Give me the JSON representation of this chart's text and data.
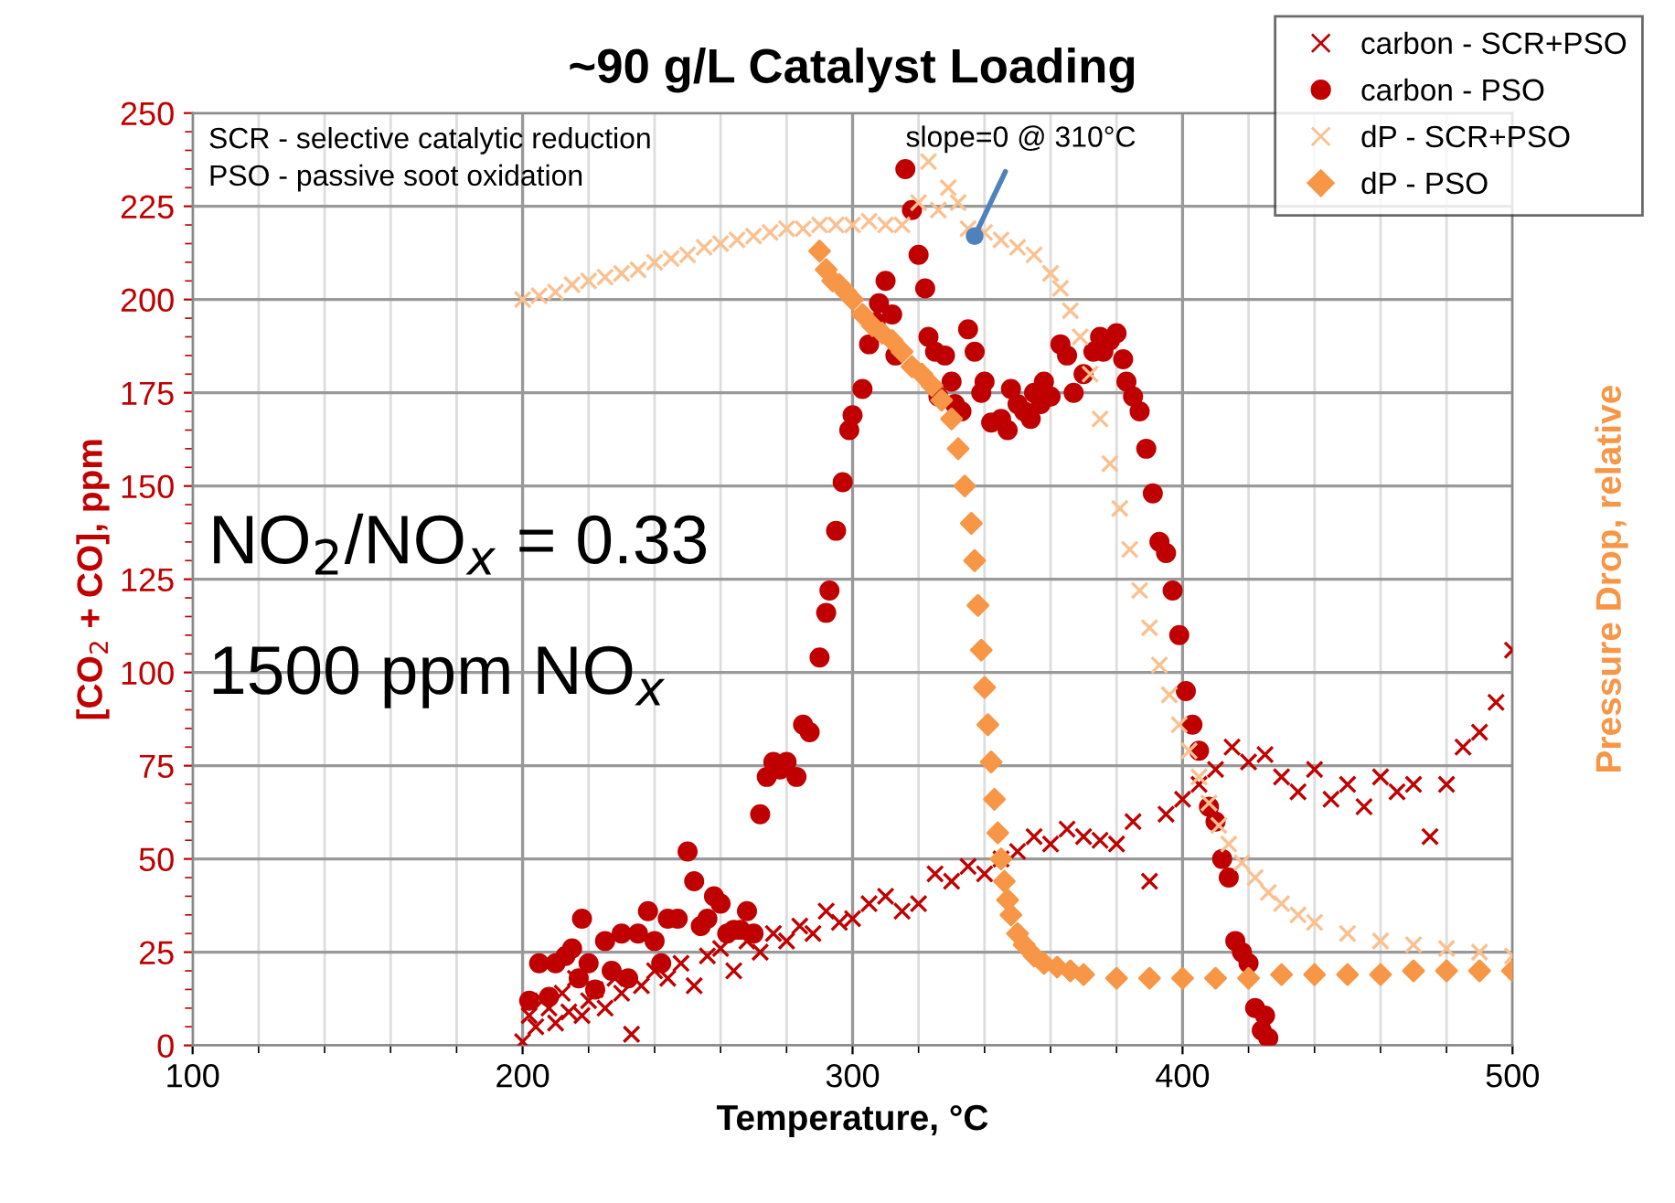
{
  "chart_data": {
    "type": "scatter",
    "title": "~90 g/L Catalyst Loading",
    "xlabel": "Temperature, °C",
    "ylabel": "[CO$_{2}$ + CO], ppm",
    "y2label": "Pressure Drop, relative",
    "xlim": [
      100,
      500
    ],
    "xticks": [
      100,
      200,
      300,
      400,
      500
    ],
    "ylim": [
      0,
      250
    ],
    "yticks": [
      0,
      25,
      50,
      75,
      100,
      125,
      150,
      175,
      200,
      225,
      250
    ],
    "grid": true,
    "legend": "top right",
    "annotations": [
      "SCR - selective catalytic reduction",
      "PSO - passive soot oxidation",
      "NO$_{2}$/NO$_{x}$ = 0.33",
      "1500 ppm NO$_{x}$",
      {
        "text": "slope=0 @ 310°C",
        "x": 337,
        "y": 217
      }
    ],
    "series": [
      {
        "name": "carbon - SCR+PSO",
        "color": "#c00000",
        "marker": "cross",
        "x": [
          200,
          202,
          204,
          206,
          208,
          210,
          212,
          214,
          216,
          218,
          220,
          222,
          225,
          228,
          230,
          233,
          236,
          240,
          244,
          248,
          252,
          256,
          260,
          264,
          268,
          272,
          276,
          280,
          284,
          288,
          292,
          296,
          300,
          305,
          310,
          315,
          320,
          325,
          330,
          335,
          340,
          345,
          350,
          355,
          360,
          365,
          370,
          375,
          380,
          385,
          390,
          395,
          400,
          405,
          410,
          415,
          420,
          425,
          430,
          435,
          440,
          445,
          450,
          455,
          460,
          465,
          470,
          475,
          480,
          485,
          490,
          495,
          500
        ],
        "values": [
          1,
          8,
          5,
          12,
          10,
          6,
          14,
          9,
          18,
          8,
          12,
          15,
          10,
          18,
          14,
          3,
          16,
          20,
          18,
          22,
          16,
          24,
          26,
          20,
          28,
          25,
          30,
          28,
          32,
          30,
          36,
          33,
          34,
          38,
          40,
          36,
          38,
          46,
          44,
          48,
          46,
          50,
          52,
          56,
          54,
          58,
          56,
          55,
          54,
          60,
          44,
          62,
          66,
          70,
          74,
          80,
          76,
          78,
          72,
          68,
          74,
          66,
          70,
          64,
          72,
          68,
          70,
          56,
          70,
          80,
          84,
          92,
          106
        ]
      },
      {
        "name": "carbon - PSO",
        "color": "#c00000",
        "marker": "circle",
        "x": [
          202,
          205,
          208,
          210,
          213,
          215,
          217,
          218,
          220,
          222,
          225,
          227,
          230,
          232,
          235,
          238,
          240,
          242,
          244,
          247,
          250,
          252,
          254,
          256,
          258,
          260,
          262,
          264,
          266,
          268,
          270,
          272,
          274,
          276,
          278,
          280,
          283,
          285,
          287,
          290,
          292,
          293,
          295,
          297,
          299,
          300,
          303,
          305,
          307,
          308,
          310,
          312,
          313,
          316,
          318,
          320,
          322,
          323,
          325,
          326,
          328,
          330,
          331,
          333,
          335,
          337,
          339,
          340,
          342,
          345,
          347,
          348,
          350,
          352,
          354,
          355,
          357,
          358,
          360,
          363,
          365,
          367,
          370,
          373,
          375,
          376,
          378,
          380,
          382,
          383,
          385,
          387,
          389,
          391,
          393,
          395,
          397,
          399,
          401,
          403,
          405,
          408,
          410,
          412,
          414,
          416,
          418,
          420,
          422,
          424,
          425,
          426
        ],
        "values": [
          12,
          22,
          13,
          22,
          24,
          26,
          18,
          34,
          22,
          15,
          28,
          20,
          30,
          18,
          30,
          36,
          28,
          22,
          34,
          34,
          52,
          44,
          32,
          34,
          40,
          38,
          30,
          31,
          31,
          36,
          30,
          62,
          72,
          76,
          74,
          76,
          72,
          86,
          84,
          104,
          116,
          122,
          138,
          151,
          165,
          169,
          176,
          188,
          194,
          199,
          205,
          196,
          185,
          235,
          224,
          212,
          203,
          190,
          186,
          174,
          185,
          178,
          172,
          170,
          192,
          186,
          175,
          178,
          167,
          168,
          165,
          176,
          172,
          170,
          168,
          175,
          172,
          178,
          174,
          188,
          185,
          175,
          180,
          186,
          190,
          186,
          189,
          191,
          184,
          178,
          174,
          170,
          160,
          148,
          135,
          132,
          122,
          110,
          95,
          86,
          79,
          64,
          60,
          50,
          45,
          28,
          25,
          22,
          10,
          4,
          8,
          2
        ]
      },
      {
        "name": "dP - SCR+PSO",
        "color": "#fac090",
        "marker": "cross",
        "x": [
          200,
          205,
          210,
          215,
          220,
          225,
          230,
          235,
          240,
          245,
          250,
          255,
          260,
          265,
          270,
          275,
          280,
          285,
          290,
          295,
          300,
          305,
          310,
          315,
          320,
          323,
          326,
          329,
          332,
          335,
          340,
          345,
          350,
          355,
          360,
          363,
          366,
          369,
          372,
          375,
          378,
          381,
          384,
          387,
          390,
          393,
          396,
          399,
          402,
          405,
          408,
          411,
          414,
          418,
          422,
          426,
          430,
          435,
          440,
          450,
          460,
          470,
          480,
          490,
          500
        ],
        "values": [
          200,
          201,
          202,
          204,
          205,
          206,
          207,
          208,
          210,
          211,
          212,
          214,
          215,
          216,
          217,
          218,
          219,
          219,
          220,
          220,
          220,
          221,
          220,
          220,
          226,
          237,
          224,
          230,
          226,
          219,
          218,
          216,
          214,
          212,
          207,
          203,
          197,
          190,
          180,
          168,
          156,
          144,
          133,
          122,
          112,
          102,
          94,
          86,
          79,
          72,
          65,
          59,
          54,
          49,
          45,
          41,
          38,
          35,
          33,
          30,
          28,
          27,
          26,
          25,
          24
        ]
      },
      {
        "name": "dP - PSO",
        "color": "#f79646",
        "marker": "diamond",
        "x": [
          290,
          292,
          294,
          296,
          298,
          300,
          303,
          306,
          309,
          312,
          315,
          318,
          321,
          324,
          327,
          330,
          332,
          334,
          336,
          337,
          338,
          339,
          340,
          341,
          342,
          343,
          344,
          345,
          346,
          347,
          348,
          350,
          352,
          355,
          358,
          362,
          366,
          370,
          380,
          390,
          400,
          410,
          420,
          430,
          440,
          450,
          460,
          470,
          480,
          490,
          500
        ],
        "values": [
          213,
          208,
          205,
          204,
          202,
          200,
          196,
          193,
          191,
          189,
          186,
          182,
          180,
          177,
          173,
          168,
          160,
          150,
          140,
          130,
          118,
          106,
          96,
          86,
          76,
          66,
          57,
          50,
          44,
          39,
          35,
          30,
          27,
          24,
          22,
          21,
          20,
          19,
          18,
          18,
          18,
          18,
          18,
          19,
          19,
          19,
          19,
          20,
          20,
          20,
          20
        ]
      }
    ]
  }
}
